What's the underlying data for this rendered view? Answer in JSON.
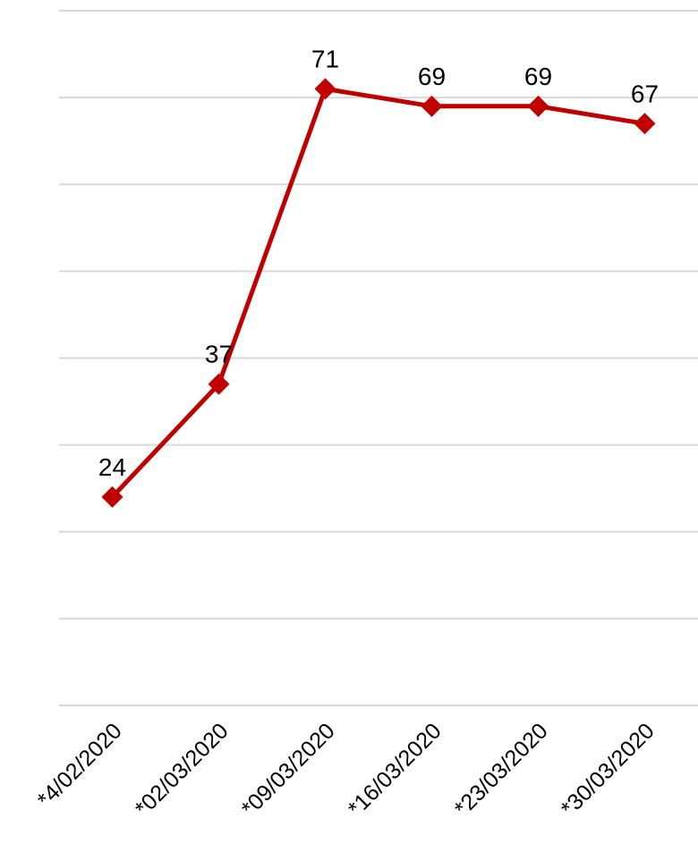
{
  "chart_data": {
    "type": "line",
    "title": "",
    "xlabel": "",
    "ylabel": "",
    "categories": [
      "*4/02/2020",
      "*02/03/2020",
      "*09/03/2020",
      "*16/03/2020",
      "*23/03/2020",
      "*30/03/2020"
    ],
    "series": [
      {
        "values": [
          24,
          37,
          71,
          69,
          69,
          67
        ],
        "color": "#c00000"
      }
    ],
    "ylim": [
      0,
      80
    ],
    "ytick_step": 10,
    "y_axis_labels_shown": false,
    "grid": true,
    "legend": "none",
    "marker": "diamond"
  }
}
